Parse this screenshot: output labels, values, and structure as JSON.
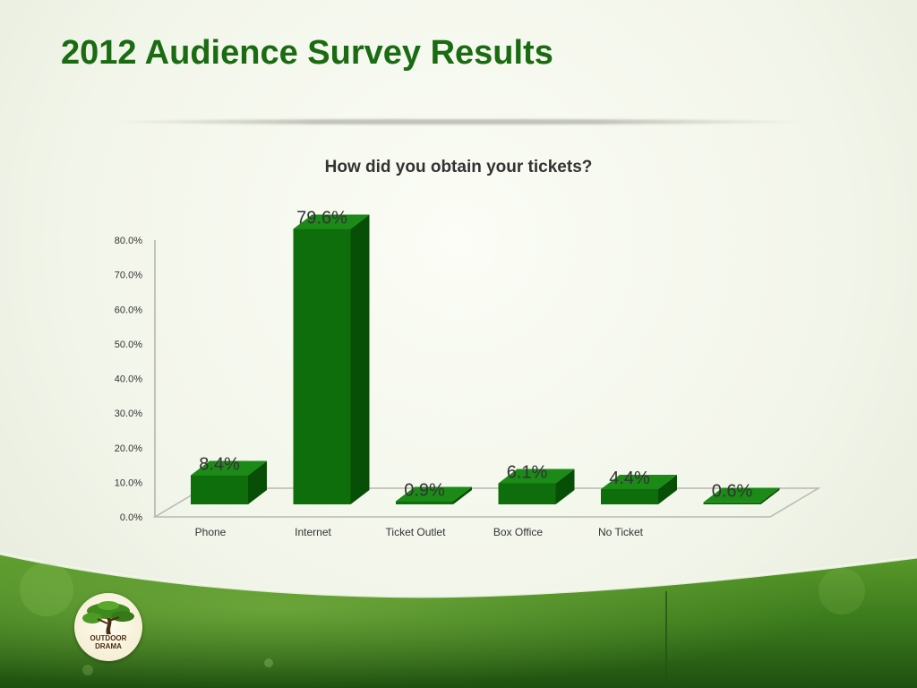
{
  "slide": {
    "title": "2012 Audience Survey Results"
  },
  "logo": {
    "line1": "OUTDOOR",
    "line2": "DRAMA",
    "icon": "bonsai-tree-icon"
  },
  "colors": {
    "title": "#1a6b12",
    "bar_front": "#0f6e0c",
    "bar_top": "#1b8a17",
    "bar_side": "#074f06",
    "footer_green": "#3d7a1f"
  },
  "chart_data": {
    "type": "bar",
    "title": "How did you obtain your tickets?",
    "categories": [
      "Phone",
      "Internet",
      "Ticket Outlet",
      "Box Office",
      "No Ticket",
      ""
    ],
    "values": [
      8.4,
      79.6,
      0.9,
      6.1,
      4.4,
      0.6
    ],
    "value_labels": [
      "8.4%",
      "79.6%",
      "0.9%",
      "6.1%",
      "4.4%",
      "0.6%"
    ],
    "y_ticks": [
      "0.0%",
      "10.0%",
      "20.0%",
      "30.0%",
      "40.0%",
      "50.0%",
      "60.0%",
      "70.0%",
      "80.0%"
    ],
    "ylim": [
      0,
      80
    ],
    "xlabel": "",
    "ylabel": "",
    "grid": false,
    "legend": "none",
    "style": "3d-column"
  }
}
